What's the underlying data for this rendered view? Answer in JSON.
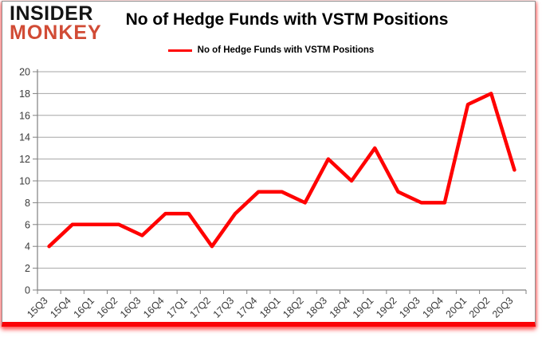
{
  "logo": {
    "line1": "INSIDER",
    "line2": "MONKEY",
    "line1_color": "#141414",
    "line2_color": "#d14b35"
  },
  "title": "No of Hedge Funds with VSTM Positions",
  "legend": {
    "label": "No of Hedge Funds with VSTM Positions",
    "swatch_color": "#ff0000"
  },
  "chart_data": {
    "type": "line",
    "title": "No of Hedge Funds with VSTM Positions",
    "categories": [
      "15Q3",
      "15Q4",
      "16Q1",
      "16Q2",
      "16Q3",
      "16Q4",
      "17Q1",
      "17Q2",
      "17Q3",
      "17Q4",
      "18Q1",
      "18Q2",
      "18Q3",
      "18Q4",
      "19Q1",
      "19Q2",
      "19Q3",
      "19Q4",
      "20Q1",
      "20Q2",
      "20Q3"
    ],
    "series": [
      {
        "name": "No of Hedge Funds with VSTM Positions",
        "color": "#ff0000",
        "values": [
          4,
          6,
          6,
          6,
          5,
          7,
          7,
          4,
          7,
          9,
          9,
          8,
          12,
          10,
          13,
          9,
          8,
          8,
          17,
          18,
          11
        ]
      }
    ],
    "xlabel": "",
    "ylabel": "",
    "ylim": [
      0,
      20
    ],
    "ytick_step": 2,
    "grid": "horizontal-major",
    "gridline_color": "#a6a6a6",
    "axis_color": "#808080",
    "tick_label_color": "#3a3a3a",
    "legend_position": "top-center"
  },
  "frame": {
    "border_color": "#909090",
    "bottom_bar_color": "#fb0307",
    "glow_color": "#ff5050"
  }
}
